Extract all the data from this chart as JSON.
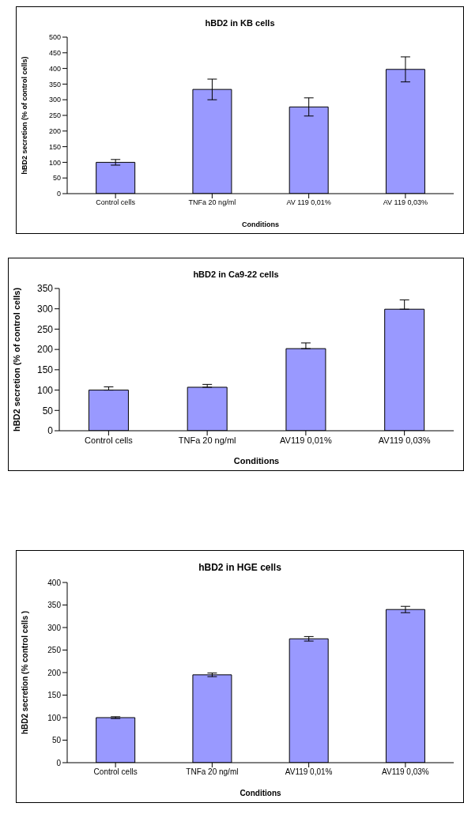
{
  "chart_data": [
    {
      "type": "bar",
      "title": "hBD2 in KB cells",
      "xlabel": "Conditions",
      "ylabel": "hBD2 secretion (% of control cells)",
      "categories": [
        "Control cells",
        "TNFa 20 ng/ml",
        "AV 119 0,01%",
        "AV 119 0,03%"
      ],
      "values": [
        100,
        333,
        277,
        397
      ],
      "errors": [
        9,
        33,
        29,
        40
      ],
      "color": "#9999ff",
      "ylim": [
        0,
        500
      ],
      "yticks": [
        0,
        50,
        100,
        150,
        200,
        250,
        300,
        350,
        400,
        450,
        500
      ],
      "grid": false,
      "legend": false
    },
    {
      "type": "bar",
      "title": "hBD2 in Ca9-22 cells",
      "xlabel": "Conditions",
      "ylabel": "hBD2 secretion (% of control cells)",
      "categories": [
        "Control cells",
        "TNFa 20 ng/ml",
        "AV119 0,01%",
        "AV119 0,03%"
      ],
      "values": [
        100,
        107,
        202,
        299
      ],
      "errors": [
        [
          100,
          108
        ],
        [
          107,
          114
        ],
        [
          202,
          216
        ],
        [
          299,
          322
        ]
      ],
      "color": "#9999ff",
      "ylim": [
        0,
        350
      ],
      "yticks": [
        0,
        50,
        100,
        150,
        200,
        250,
        300,
        350
      ],
      "grid": false,
      "legend": false
    },
    {
      "type": "bar",
      "title": "hBD2 in HGE cells",
      "xlabel": "Conditions",
      "ylabel": "hBD2 secretion (% control cells )",
      "categories": [
        "Control cells",
        "TNFa 20 ng/ml",
        "AV119 0,01%",
        "AV119 0,03%"
      ],
      "values": [
        100,
        195,
        275,
        340
      ],
      "errors": [
        2,
        4,
        5,
        7
      ],
      "color": "#9999ff",
      "ylim": [
        0,
        400
      ],
      "yticks": [
        0,
        50,
        100,
        150,
        200,
        250,
        300,
        350,
        400
      ],
      "grid": false,
      "legend": false
    }
  ]
}
